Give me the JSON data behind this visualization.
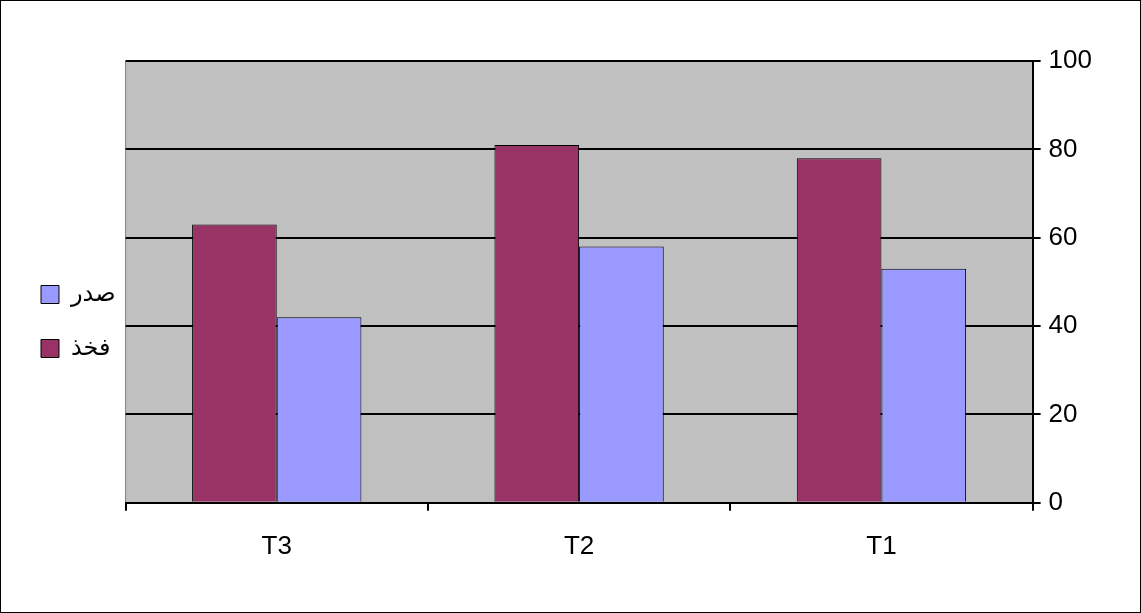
{
  "chart_data": {
    "type": "bar",
    "categories": [
      "T3",
      "T2",
      "T1"
    ],
    "series": [
      {
        "name": "فخذ",
        "color": "#993366",
        "values": [
          63,
          81,
          78
        ]
      },
      {
        "name": "صدر",
        "color": "#9999ff",
        "values": [
          42,
          58,
          53
        ]
      }
    ],
    "ylim": [
      0,
      100
    ],
    "yticks": [
      0,
      20,
      40,
      60,
      80,
      100
    ],
    "grid": "y",
    "legend": "left"
  }
}
